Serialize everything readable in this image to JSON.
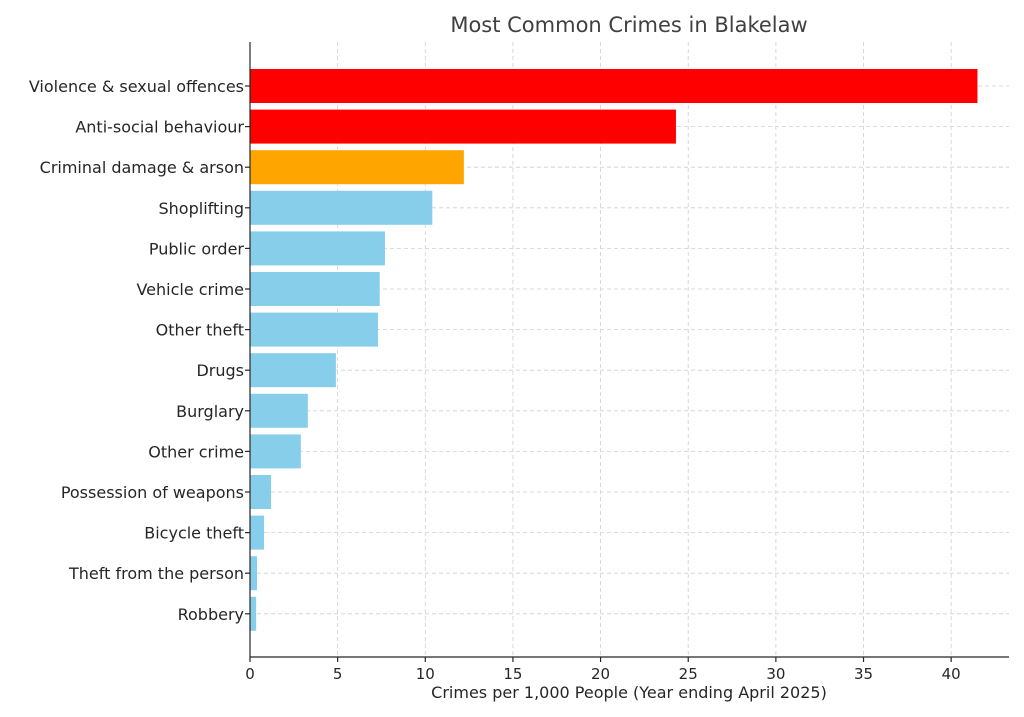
{
  "chart_data": {
    "type": "bar",
    "orientation": "horizontal",
    "title": "Most Common Crimes in Blakelaw",
    "xlabel": "Crimes per 1,000 People (Year ending April 2025)",
    "ylabel": "",
    "xlim": [
      0,
      43.3
    ],
    "xticks": [
      0,
      5,
      10,
      15,
      20,
      25,
      30,
      35,
      40
    ],
    "grid": true,
    "categories": [
      "Violence & sexual offences",
      "Anti-social behaviour",
      "Criminal damage & arson",
      "Shoplifting",
      "Public order",
      "Vehicle crime",
      "Other theft",
      "Drugs",
      "Burglary",
      "Other crime",
      "Possession of weapons",
      "Bicycle theft",
      "Theft from the person",
      "Robbery"
    ],
    "values": [
      41.5,
      24.3,
      12.2,
      10.4,
      7.7,
      7.4,
      7.3,
      4.9,
      3.3,
      2.9,
      1.2,
      0.8,
      0.4,
      0.35
    ],
    "colors": [
      "#ff0000",
      "#ff0000",
      "#ffa500",
      "#87ceeb",
      "#87ceeb",
      "#87ceeb",
      "#87ceeb",
      "#87ceeb",
      "#87ceeb",
      "#87ceeb",
      "#87ceeb",
      "#87ceeb",
      "#87ceeb",
      "#87ceeb"
    ]
  }
}
